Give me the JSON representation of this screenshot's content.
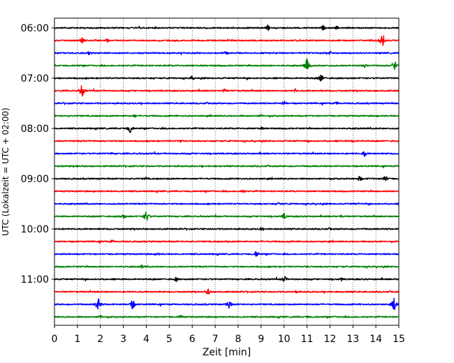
{
  "chart_data": {
    "type": "line",
    "title": "",
    "xlabel": "Zeit  [min]",
    "ylabel": "UTC (Lokalzeit = UTC + 02:00)",
    "xlim": [
      0,
      15
    ],
    "x_ticks": [
      "0",
      "1",
      "2",
      "3",
      "4",
      "5",
      "6",
      "7",
      "8",
      "9",
      "10",
      "11",
      "12",
      "13",
      "14",
      "15"
    ],
    "y_ticks": [
      "06:00",
      "07:00",
      "08:00",
      "09:00",
      "10:00",
      "11:00"
    ],
    "grid": "vertical dotted lines at each minute",
    "color_cycle": [
      "#000000",
      "#ff0000",
      "#0000ff",
      "#008000"
    ],
    "series": [
      {
        "start": "06:00",
        "color": "#000000",
        "events": [
          [
            9.3,
            5
          ],
          [
            11.7,
            4
          ],
          [
            12.3,
            3
          ]
        ]
      },
      {
        "start": "06:15",
        "color": "#ff0000",
        "events": [
          [
            1.2,
            5
          ],
          [
            14.3,
            11
          ],
          [
            2.3,
            3
          ]
        ]
      },
      {
        "start": "06:30",
        "color": "#0000ff",
        "events": [
          [
            1.5,
            3
          ],
          [
            7.5,
            3
          ],
          [
            12.0,
            3
          ]
        ]
      },
      {
        "start": "06:45",
        "color": "#008000",
        "events": [
          [
            11.0,
            11
          ],
          [
            14.8,
            9
          ],
          [
            13.5,
            3
          ]
        ]
      },
      {
        "start": "07:00",
        "color": "#000000",
        "events": [
          [
            6.0,
            4
          ],
          [
            11.6,
            7
          ]
        ]
      },
      {
        "start": "07:15",
        "color": "#ff0000",
        "events": [
          [
            1.2,
            10
          ],
          [
            7.4,
            4
          ],
          [
            10.5,
            3
          ]
        ]
      },
      {
        "start": "07:30",
        "color": "#0000ff",
        "events": [
          [
            10.0,
            4
          ],
          [
            12.3,
            3
          ]
        ]
      },
      {
        "start": "07:45",
        "color": "#008000",
        "events": [
          [
            3.5,
            3
          ],
          [
            9.0,
            3
          ]
        ]
      },
      {
        "start": "08:00",
        "color": "#000000",
        "events": [
          [
            3.3,
            8
          ],
          [
            9.0,
            3
          ]
        ]
      },
      {
        "start": "08:15",
        "color": "#ff0000",
        "events": [
          [
            5.5,
            3
          ],
          [
            13.0,
            3
          ]
        ]
      },
      {
        "start": "08:30",
        "color": "#0000ff",
        "events": [
          [
            13.5,
            5
          ],
          [
            2.5,
            2
          ]
        ]
      },
      {
        "start": "08:45",
        "color": "#008000",
        "events": [
          [
            1.0,
            2
          ]
        ]
      },
      {
        "start": "09:00",
        "color": "#000000",
        "events": [
          [
            13.3,
            5
          ],
          [
            14.4,
            6
          ],
          [
            4.0,
            3
          ]
        ]
      },
      {
        "start": "09:15",
        "color": "#ff0000",
        "events": [
          [
            8.2,
            4
          ]
        ]
      },
      {
        "start": "09:30",
        "color": "#0000ff",
        "events": [
          [
            9.8,
            3
          ],
          [
            13.0,
            2
          ]
        ]
      },
      {
        "start": "09:45",
        "color": "#008000",
        "events": [
          [
            3.0,
            5
          ],
          [
            4.0,
            9
          ],
          [
            10.0,
            5
          ],
          [
            12.5,
            3
          ]
        ]
      },
      {
        "start": "10:00",
        "color": "#000000",
        "events": [
          [
            9.0,
            3
          ],
          [
            12.0,
            2
          ]
        ]
      },
      {
        "start": "10:15",
        "color": "#ff0000",
        "events": [
          [
            2.5,
            3
          ],
          [
            7.5,
            2
          ]
        ]
      },
      {
        "start": "10:30",
        "color": "#0000ff",
        "events": [
          [
            8.8,
            6
          ],
          [
            4.5,
            3
          ]
        ]
      },
      {
        "start": "10:45",
        "color": "#008000",
        "events": [
          [
            3.8,
            3
          ],
          [
            11.0,
            2
          ]
        ]
      },
      {
        "start": "11:00",
        "color": "#000000",
        "events": [
          [
            5.3,
            4
          ],
          [
            10.0,
            6
          ],
          [
            12.5,
            3
          ]
        ]
      },
      {
        "start": "11:15",
        "color": "#ff0000",
        "events": [
          [
            6.7,
            5
          ],
          [
            10.5,
            3
          ]
        ]
      },
      {
        "start": "11:30",
        "color": "#0000ff",
        "events": [
          [
            1.9,
            10
          ],
          [
            3.4,
            8
          ],
          [
            7.6,
            8
          ],
          [
            14.8,
            10
          ]
        ]
      },
      {
        "start": "11:45",
        "color": "#008000",
        "events": [
          [
            2.0,
            4
          ],
          [
            5.5,
            4
          ],
          [
            11.0,
            3
          ]
        ]
      }
    ]
  }
}
